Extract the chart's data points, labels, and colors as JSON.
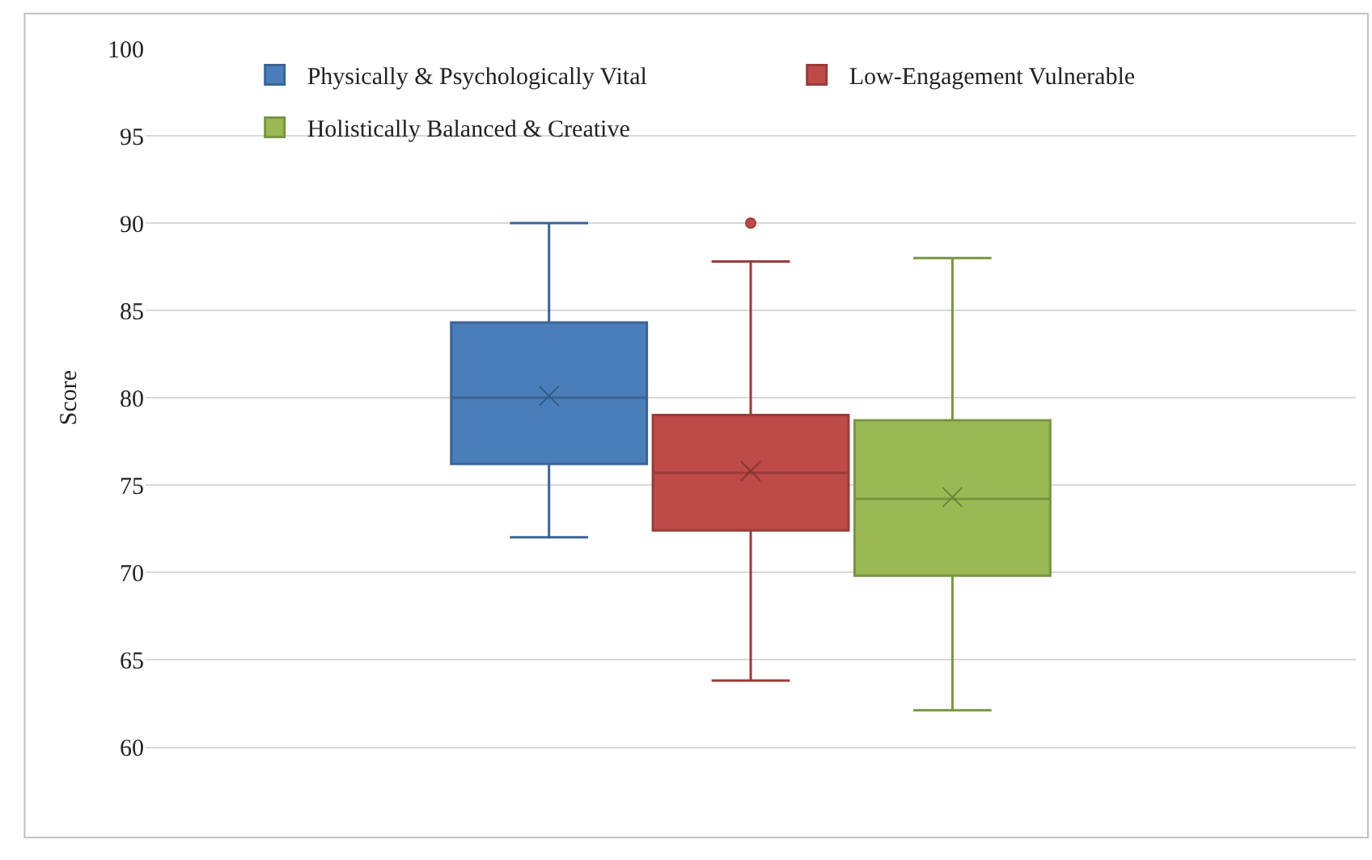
{
  "chart_data": {
    "type": "box",
    "ylabel": "Score",
    "categories": [
      null
    ],
    "ylim": [
      60,
      100
    ],
    "yticks": [
      60,
      65,
      70,
      75,
      80,
      85,
      90,
      95,
      100
    ],
    "grid": "y",
    "legend": "top",
    "marker": "cross",
    "series": [
      {
        "name": "Physically & Psychologically Vital",
        "color": "#4a7ebb",
        "boxes": [
          {
            "low": 72,
            "q1": 76.2,
            "median": 80,
            "q3": 84.3,
            "high": 90,
            "mean": 80.1
          }
        ]
      },
      {
        "name": "Low-Engagement Vulnerable",
        "color": "#be4b48",
        "boxes": [
          {
            "low": 63.8,
            "q1": 72.4,
            "median": 75.7,
            "q3": 79,
            "high": 87.8,
            "mean": 75.8,
            "outliers": [
              90
            ]
          }
        ]
      },
      {
        "name": "Holistically Balanced & Creative",
        "color": "#98b954",
        "boxes": [
          {
            "low": 62.1,
            "q1": 69.8,
            "median": 74.2,
            "q3": 78.7,
            "high": 88,
            "mean": 74.3
          }
        ]
      }
    ]
  }
}
